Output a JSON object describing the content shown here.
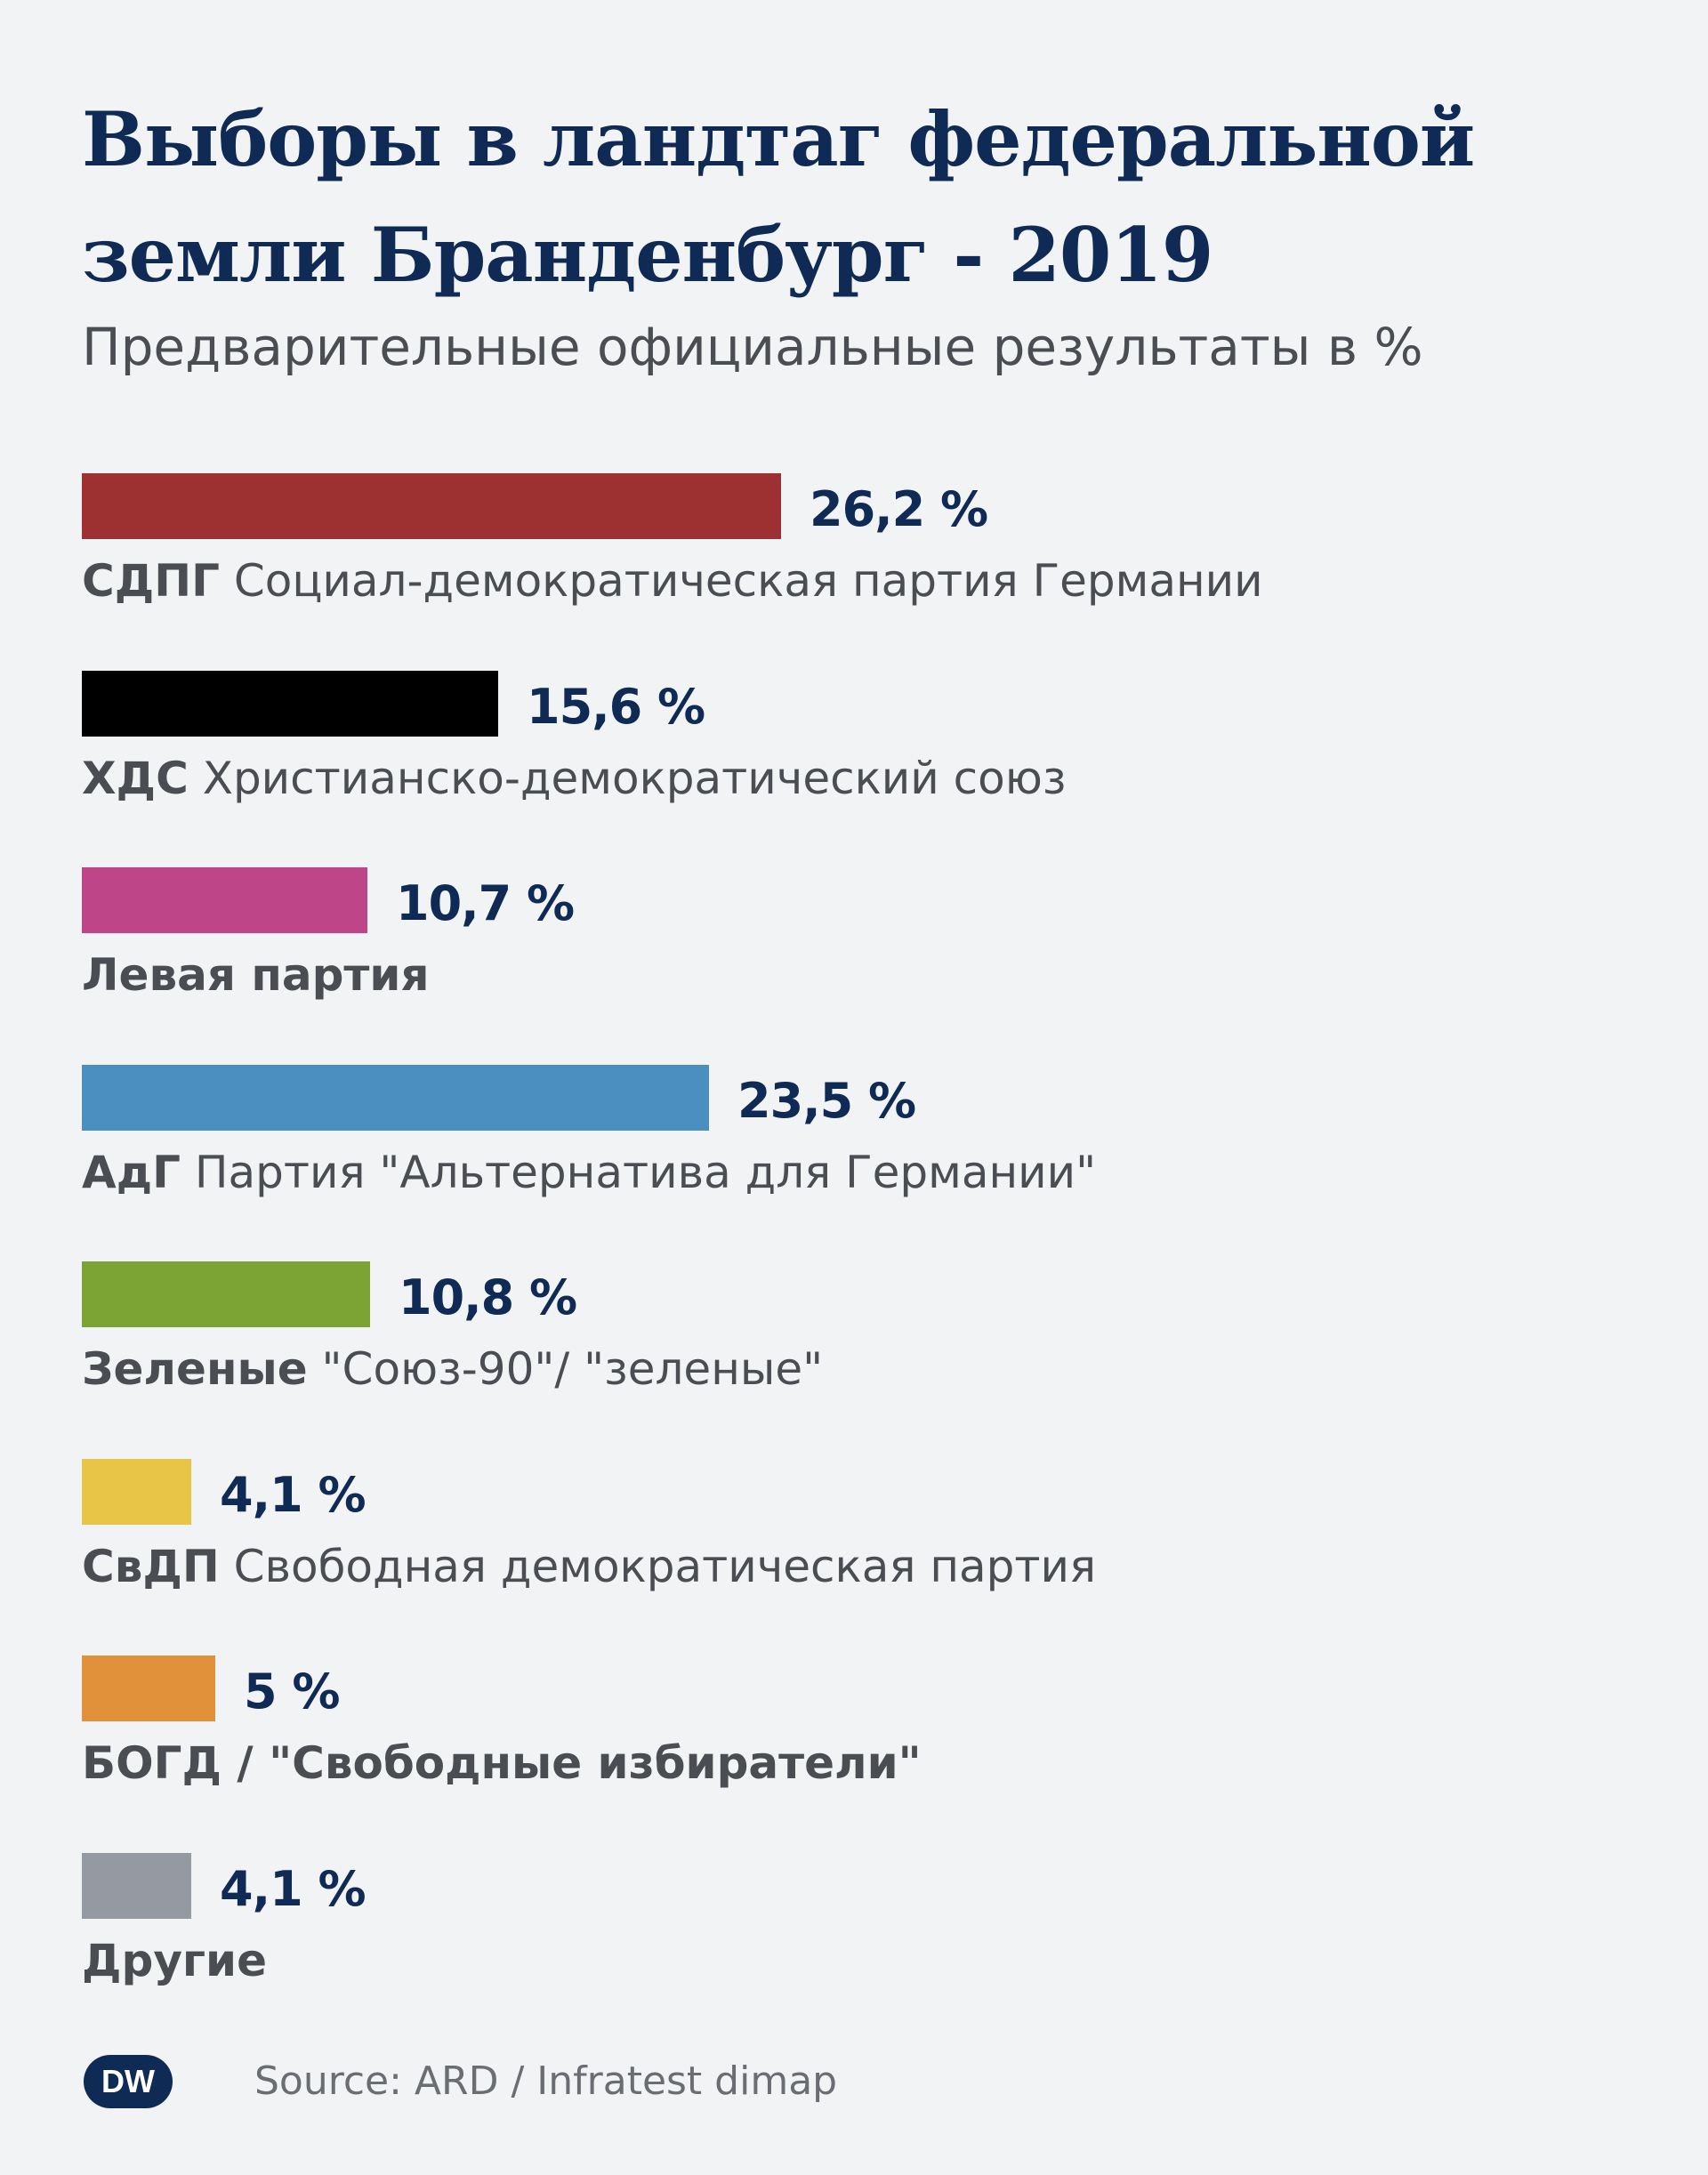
{
  "title": "Выборы в ландтаг федеральной земли Бранденбург - 2019",
  "subtitle": "Предварительные официальные результаты в %",
  "source": "Source: ARD / Infratest dimap",
  "logo_text": "DW",
  "chart_data": {
    "type": "bar",
    "orientation": "horizontal",
    "title": "Выборы в ландтаг федеральной земли Бранденбург - 2019",
    "subtitle": "Предварительные официальные результаты в %",
    "unit": "%",
    "grid": false,
    "categories": [
      {
        "abbr": "СДПГ",
        "name": "Социал-демократическая партия Германии",
        "value": 26.2,
        "value_label": "26,2 %",
        "color": "#9d3030"
      },
      {
        "abbr": "ХДС",
        "name": "Христианско-демократический союз",
        "value": 15.6,
        "value_label": "15,6 %",
        "color": "#000000"
      },
      {
        "abbr": "Левая партия",
        "name": "",
        "value": 10.7,
        "value_label": "10,7 %",
        "color": "#bd4588"
      },
      {
        "abbr": "АдГ",
        "name": "Партия \"Альтернатива для Германии\"",
        "value": 23.5,
        "value_label": "23,5 %",
        "color": "#4a8fc0"
      },
      {
        "abbr": "Зеленые",
        "name": "\"Союз-90\"/ \"зеленые\"",
        "value": 10.8,
        "value_label": "10,8 %",
        "color": "#7ba434"
      },
      {
        "abbr": "СвДП",
        "name": "Свободная демократическая партия",
        "value": 4.1,
        "value_label": "4,1 %",
        "color": "#e8c547"
      },
      {
        "abbr": "БОГД / \"Свободные избиратели\"",
        "name": "",
        "value": 5,
        "value_label": "5 %",
        "color": "#e1913a"
      },
      {
        "abbr": "Другие",
        "name": "",
        "value": 4.1,
        "value_label": "4,1 %",
        "color": "#9599a1"
      }
    ]
  }
}
